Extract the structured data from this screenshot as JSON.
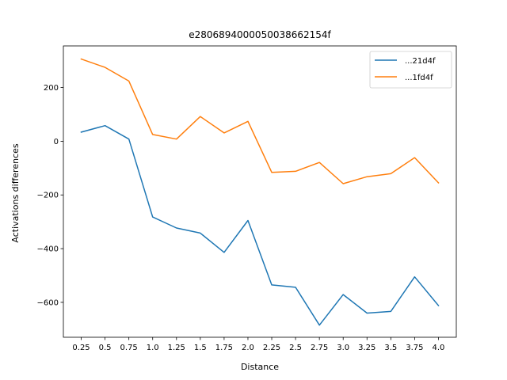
{
  "chart_data": {
    "type": "line",
    "title": "e2806894000050038662154f",
    "xlabel": "Distance",
    "ylabel": "Activations differences",
    "x": [
      0.25,
      0.5,
      0.75,
      1.0,
      1.25,
      1.5,
      1.75,
      2.0,
      2.25,
      2.5,
      2.75,
      3.0,
      3.25,
      3.5,
      3.75,
      4.0
    ],
    "x_tick_labels": [
      "0.25",
      "0.5",
      "0.75",
      "1.0",
      "1.25",
      "1.5",
      "1.75",
      "2.0",
      "2.25",
      "2.5",
      "2.75",
      "3.0",
      "3.25",
      "3.5",
      "3.75",
      "4.0"
    ],
    "y_ticks": [
      200,
      0,
      -200,
      -400,
      -600
    ],
    "y_tick_labels": [
      "200",
      "0",
      "−200",
      "−400",
      "−600"
    ],
    "ylim": [
      -730,
      355
    ],
    "grid": false,
    "legend_position": "top-right",
    "series": [
      {
        "name": "...21d4f",
        "color": "#1f77b4",
        "values": [
          34,
          58,
          8,
          -282,
          -323,
          -342,
          -414,
          -295,
          -535,
          -544,
          -685,
          -571,
          -640,
          -634,
          -505,
          -612
        ]
      },
      {
        "name": "...1fd4f",
        "color": "#ff7f0e",
        "values": [
          306,
          275,
          224,
          25,
          8,
          92,
          31,
          74,
          -116,
          -112,
          -79,
          -158,
          -132,
          -121,
          -61,
          -155
        ]
      }
    ]
  }
}
